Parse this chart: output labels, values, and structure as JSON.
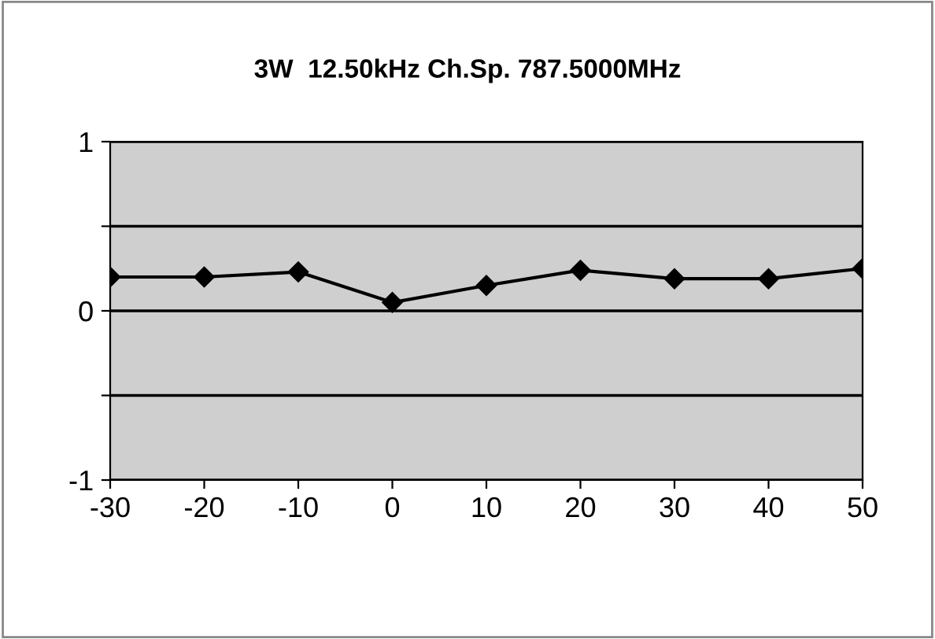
{
  "chart_data": {
    "type": "line",
    "title": "3W  12.50kHz Ch.Sp. 787.5000MHz",
    "x": [
      -30,
      -20,
      -10,
      0,
      10,
      20,
      30,
      40,
      50
    ],
    "series": [
      {
        "color": "#000000",
        "values": [
          0.2,
          0.2,
          0.23,
          0.05,
          0.15,
          0.24,
          0.19,
          0.19,
          0.25
        ]
      }
    ],
    "xlim": [
      -30,
      50
    ],
    "xticks": [
      -30,
      -20,
      -10,
      0,
      10,
      20,
      30,
      40,
      50
    ],
    "ylim": [
      -1,
      1
    ],
    "yticks": [
      -1,
      {
        "value": -0.5,
        "label": null
      },
      0,
      {
        "value": 0.5,
        "label": null
      },
      1
    ],
    "grid": "y",
    "marker": "diamond",
    "line_style": "solid",
    "legend": false
  }
}
